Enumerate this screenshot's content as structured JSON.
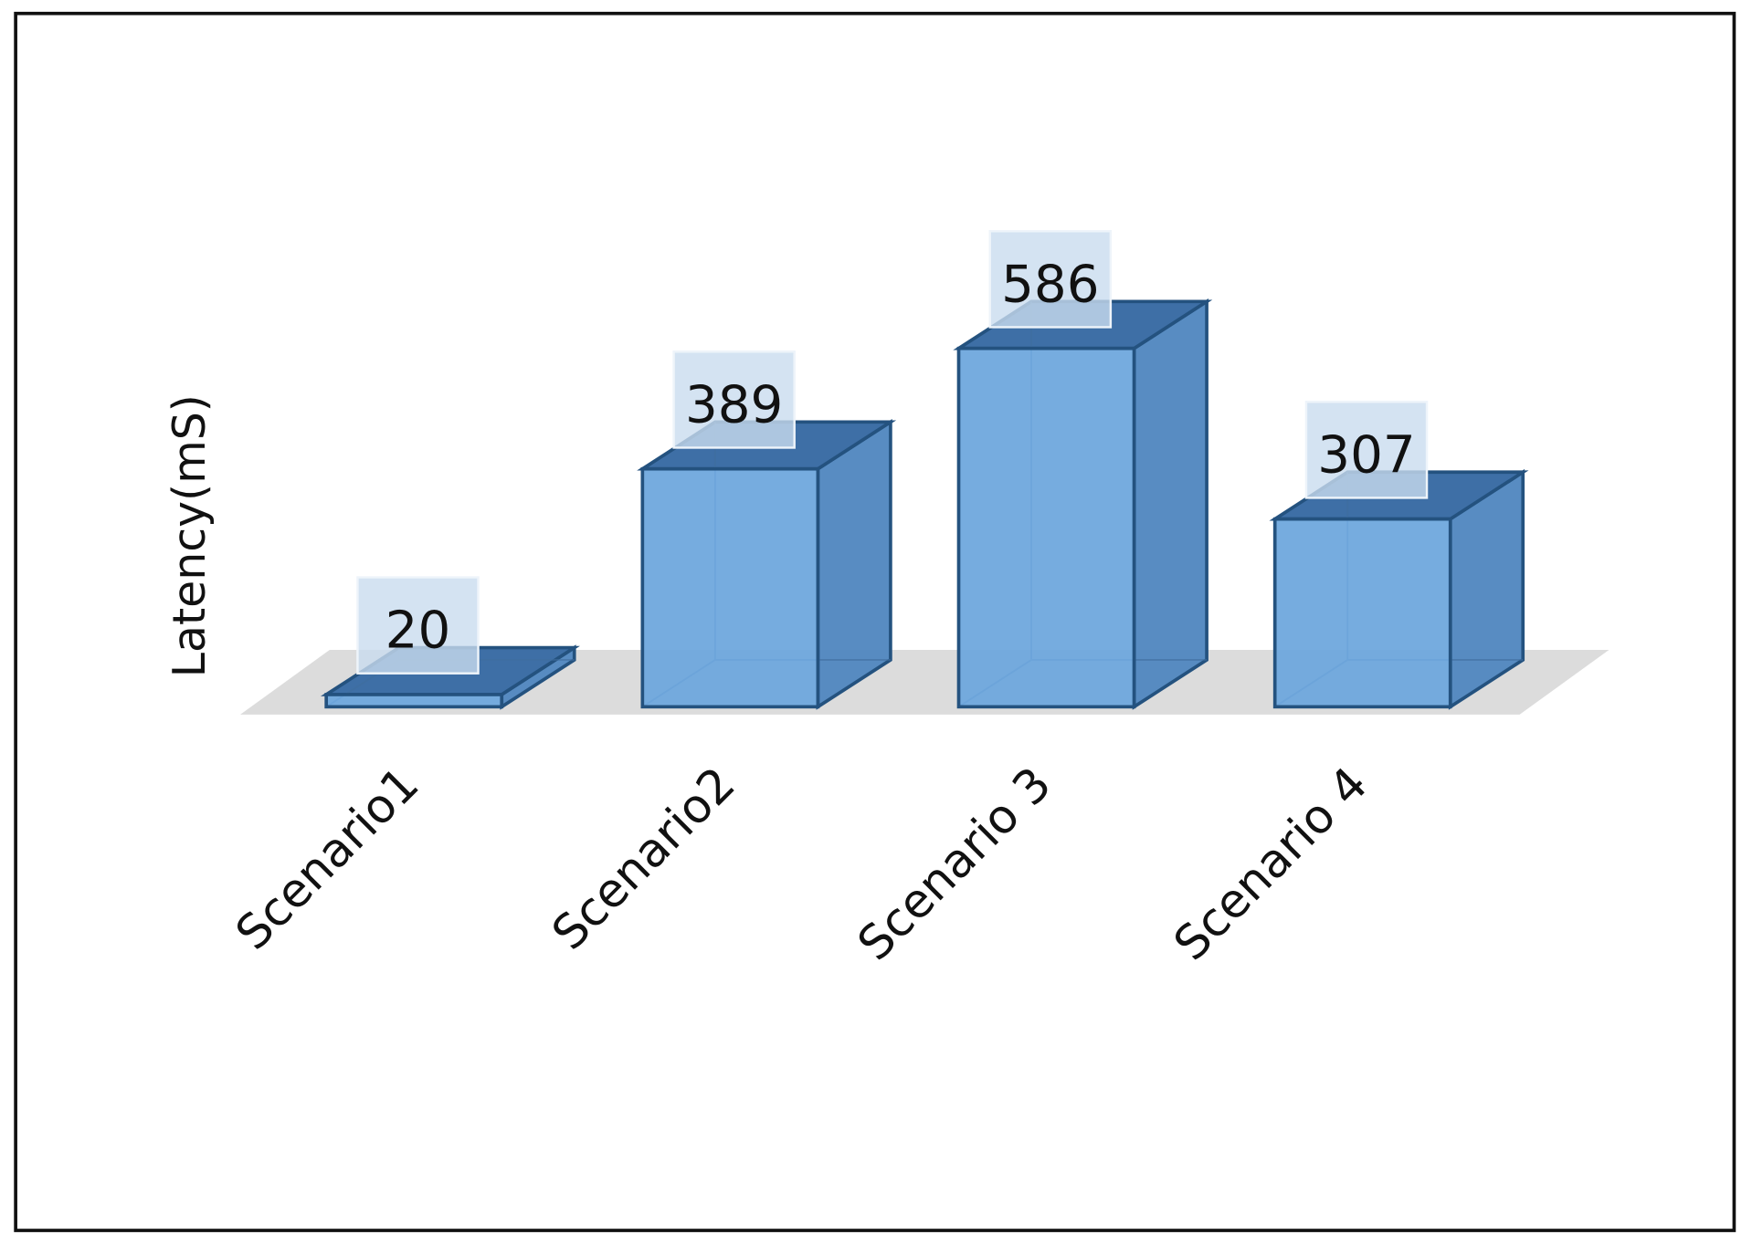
{
  "chart_data": {
    "type": "bar3d",
    "y_label": "Latency(mS)",
    "categories": [
      "Scenario1",
      "Scenario2",
      "Scenario 3",
      "Scenario 4"
    ],
    "values": [
      20,
      389,
      586,
      307
    ],
    "color": "#6aa5dc"
  }
}
